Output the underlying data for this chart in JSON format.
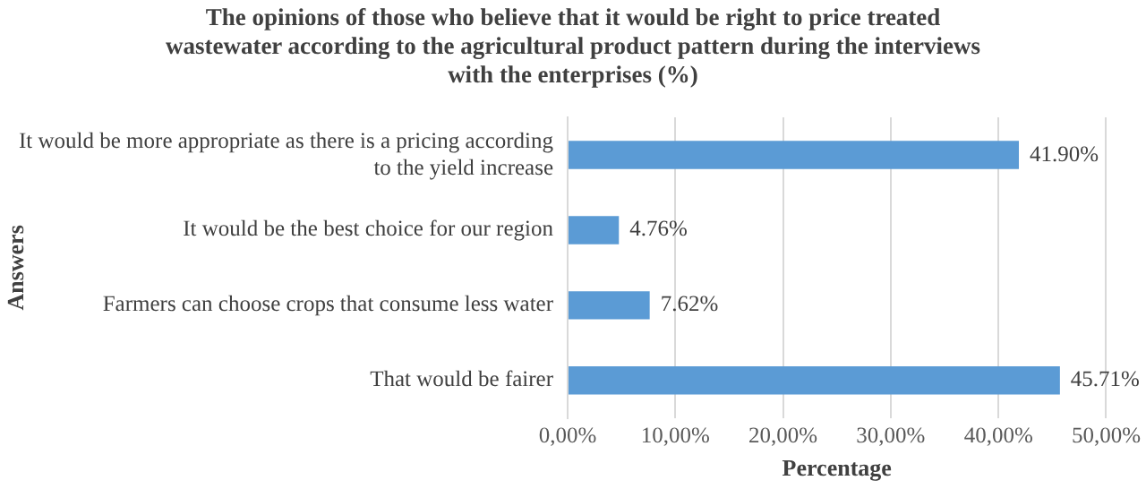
{
  "chart_data": {
    "type": "bar",
    "orientation": "horizontal",
    "title": "The opinions of those who believe that it would be right to price treated wastewater according to the agricultural product pattern during the interviews with the enterprises (%)",
    "xlabel": "Percentage",
    "ylabel": "Answers",
    "categories": [
      "It would be more appropriate as there is a pricing according to the yield increase",
      "It would be the best choice for our region",
      "Farmers can choose crops that consume less water",
      "That would be fairer"
    ],
    "values": [
      41.9,
      4.76,
      7.62,
      45.71
    ],
    "value_labels": [
      "41.90%",
      "4.76%",
      "7.62%",
      "45.71%"
    ],
    "color": "#5b9bd5",
    "xlim": [
      0,
      50
    ],
    "xticks": [
      {
        "value": 0,
        "label": "0,00%"
      },
      {
        "value": 10,
        "label": "10,00%"
      },
      {
        "value": 20,
        "label": "20,00%"
      },
      {
        "value": 30,
        "label": "30,00%"
      },
      {
        "value": 40,
        "label": "40,00%"
      },
      {
        "value": 50,
        "label": "50,00%"
      }
    ],
    "grid": "x",
    "legend": false
  }
}
